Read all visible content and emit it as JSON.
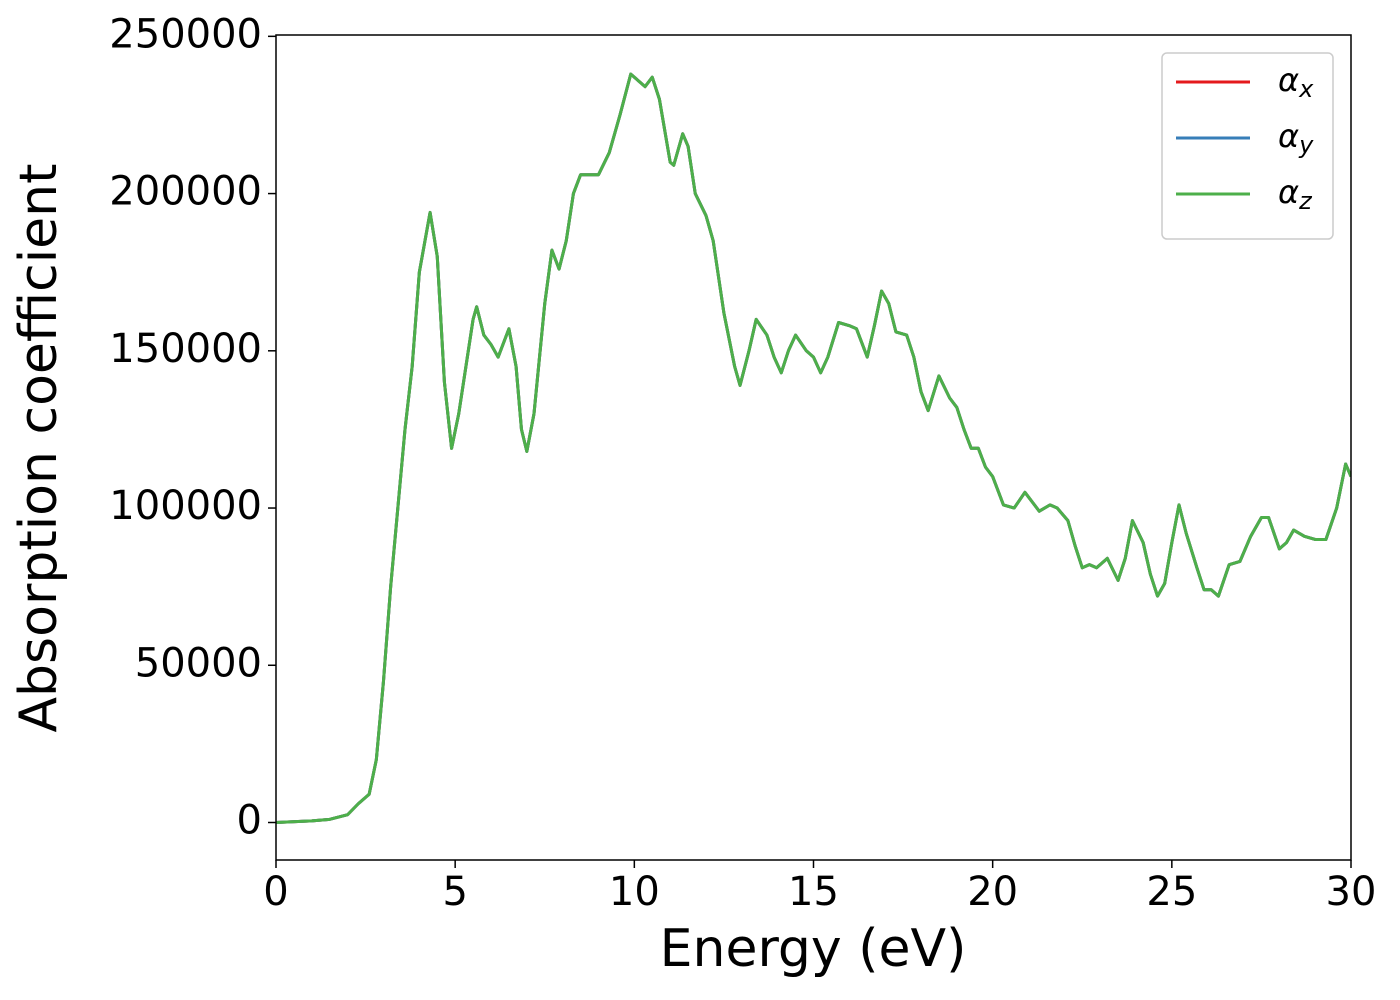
{
  "chart_data": {
    "type": "line",
    "xlabel": "Energy (eV)",
    "ylabel": "Absorption coefficient",
    "x": [
      0,
      1,
      1.5,
      2,
      2.3,
      2.6,
      2.8,
      3.0,
      3.2,
      3.4,
      3.6,
      3.8,
      4.0,
      4.3,
      4.5,
      4.7,
      4.9,
      5.1,
      5.3,
      5.5,
      5.6,
      5.8,
      6.0,
      6.2,
      6.5,
      6.7,
      6.85,
      7.0,
      7.2,
      7.5,
      7.7,
      7.9,
      8.1,
      8.3,
      8.5,
      8.8,
      9.0,
      9.3,
      9.6,
      9.9,
      10.1,
      10.3,
      10.5,
      10.7,
      11.0,
      11.1,
      11.35,
      11.5,
      11.7,
      12.0,
      12.2,
      12.5,
      12.8,
      12.95,
      13.2,
      13.4,
      13.7,
      13.9,
      14.1,
      14.3,
      14.5,
      14.8,
      15.0,
      15.2,
      15.4,
      15.7,
      16.0,
      16.2,
      16.5,
      16.7,
      16.9,
      17.1,
      17.3,
      17.6,
      17.8,
      18.0,
      18.2,
      18.5,
      18.8,
      19.0,
      19.2,
      19.4,
      19.6,
      19.8,
      20.0,
      20.3,
      20.6,
      20.9,
      21.1,
      21.3,
      21.6,
      21.8,
      22.1,
      22.3,
      22.5,
      22.7,
      22.9,
      23.2,
      23.5,
      23.7,
      23.9,
      24.2,
      24.4,
      24.6,
      24.8,
      25.0,
      25.2,
      25.4,
      25.7,
      25.9,
      26.1,
      26.3,
      26.6,
      26.9,
      27.2,
      27.5,
      27.7,
      28.0,
      28.2,
      28.4,
      28.7,
      29.0,
      29.3,
      29.6,
      29.85,
      30.0
    ],
    "series": [
      {
        "name": "αx",
        "color": "#e41a1c",
        "values": [
          0,
          500,
          1000,
          2500,
          6000,
          9000,
          20000,
          45000,
          75000,
          100000,
          125000,
          145000,
          175000,
          194000,
          180000,
          140000,
          119000,
          130000,
          145000,
          160000,
          164000,
          155000,
          152000,
          148000,
          157000,
          145000,
          125000,
          118000,
          130000,
          165000,
          182000,
          176000,
          185000,
          200000,
          206000,
          206000,
          206000,
          213000,
          225000,
          238000,
          236000,
          234000,
          237000,
          230000,
          210000,
          209000,
          219000,
          215000,
          200000,
          193000,
          185000,
          162000,
          145000,
          139000,
          150000,
          160000,
          155000,
          148000,
          143000,
          150000,
          155000,
          150000,
          148000,
          143000,
          148000,
          159000,
          158000,
          157000,
          148000,
          158000,
          169000,
          165000,
          156000,
          155000,
          148000,
          137000,
          131000,
          142000,
          135000,
          132000,
          125000,
          119000,
          119000,
          113000,
          110000,
          101000,
          100000,
          105000,
          102000,
          99000,
          101000,
          100000,
          96000,
          88000,
          81000,
          82000,
          81000,
          84000,
          77000,
          84000,
          96000,
          89000,
          79000,
          72000,
          76000,
          89000,
          101000,
          92000,
          81000,
          74000,
          74000,
          72000,
          82000,
          83000,
          91000,
          97000,
          97000,
          87000,
          89000,
          93000,
          91000,
          90000,
          90000,
          100000,
          114000,
          110000
        ]
      },
      {
        "name": "αy",
        "color": "#377eb8",
        "values": [
          0,
          500,
          1000,
          2500,
          6000,
          9000,
          20000,
          45000,
          75000,
          100000,
          125000,
          145000,
          175000,
          194000,
          180000,
          140000,
          119000,
          130000,
          145000,
          160000,
          164000,
          155000,
          152000,
          148000,
          157000,
          145000,
          125000,
          118000,
          130000,
          165000,
          182000,
          176000,
          185000,
          200000,
          206000,
          206000,
          206000,
          213000,
          225000,
          238000,
          236000,
          234000,
          237000,
          230000,
          210000,
          209000,
          219000,
          215000,
          200000,
          193000,
          185000,
          162000,
          145000,
          139000,
          150000,
          160000,
          155000,
          148000,
          143000,
          150000,
          155000,
          150000,
          148000,
          143000,
          148000,
          159000,
          158000,
          157000,
          148000,
          158000,
          169000,
          165000,
          156000,
          155000,
          148000,
          137000,
          131000,
          142000,
          135000,
          132000,
          125000,
          119000,
          119000,
          113000,
          110000,
          101000,
          100000,
          105000,
          102000,
          99000,
          101000,
          100000,
          96000,
          88000,
          81000,
          82000,
          81000,
          84000,
          77000,
          84000,
          96000,
          89000,
          79000,
          72000,
          76000,
          89000,
          101000,
          92000,
          81000,
          74000,
          74000,
          72000,
          82000,
          83000,
          91000,
          97000,
          97000,
          87000,
          89000,
          93000,
          91000,
          90000,
          90000,
          100000,
          114000,
          110000
        ]
      },
      {
        "name": "αz",
        "color": "#4daf4a",
        "values": [
          0,
          500,
          1000,
          2500,
          6000,
          9000,
          20000,
          45000,
          75000,
          100000,
          125000,
          145000,
          175000,
          194000,
          180000,
          140000,
          119000,
          130000,
          145000,
          160000,
          164000,
          155000,
          152000,
          148000,
          157000,
          145000,
          125000,
          118000,
          130000,
          165000,
          182000,
          176000,
          185000,
          200000,
          206000,
          206000,
          206000,
          213000,
          225000,
          238000,
          236000,
          234000,
          237000,
          230000,
          210000,
          209000,
          219000,
          215000,
          200000,
          193000,
          185000,
          162000,
          145000,
          139000,
          150000,
          160000,
          155000,
          148000,
          143000,
          150000,
          155000,
          150000,
          148000,
          143000,
          148000,
          159000,
          158000,
          157000,
          148000,
          158000,
          169000,
          165000,
          156000,
          155000,
          148000,
          137000,
          131000,
          142000,
          135000,
          132000,
          125000,
          119000,
          119000,
          113000,
          110000,
          101000,
          100000,
          105000,
          102000,
          99000,
          101000,
          100000,
          96000,
          88000,
          81000,
          82000,
          81000,
          84000,
          77000,
          84000,
          96000,
          89000,
          79000,
          72000,
          76000,
          89000,
          101000,
          92000,
          81000,
          74000,
          74000,
          72000,
          82000,
          83000,
          91000,
          97000,
          97000,
          87000,
          89000,
          93000,
          91000,
          90000,
          90000,
          100000,
          114000,
          110000
        ]
      }
    ],
    "xlim": [
      0,
      30
    ],
    "xticks": [
      0,
      5,
      10,
      15,
      20,
      25,
      30
    ],
    "ylim": [
      -11925,
      250425
    ],
    "yticks": [
      0,
      50000,
      100000,
      150000,
      200000,
      250000
    ],
    "legend": "upper right"
  }
}
